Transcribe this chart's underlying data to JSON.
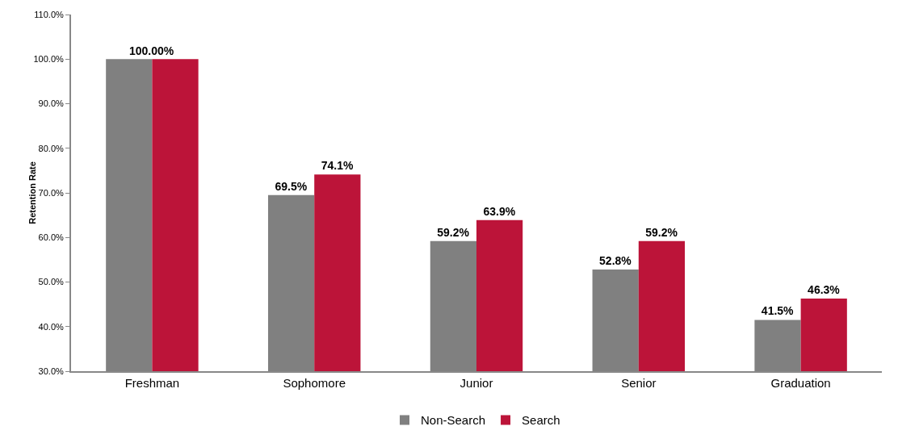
{
  "chart_data": {
    "type": "bar",
    "ylabel": "Retention Rate",
    "categories": [
      "Freshman",
      "Sophomore",
      "Junior",
      "Senior",
      "Graduation"
    ],
    "series": [
      {
        "name": "Non-Search",
        "color": "#808080",
        "values": [
          100,
          69.5,
          59.2,
          52.8,
          41.5
        ],
        "value_labels": [
          null,
          "69.5%",
          "59.2%",
          "52.8%",
          "41.5%"
        ]
      },
      {
        "name": "Search",
        "color": "#bc1439",
        "values": [
          100,
          74.1,
          63.9,
          59.2,
          46.3
        ],
        "value_labels": [
          null,
          "74.1%",
          "63.9%",
          "59.2%",
          "46.3%"
        ]
      }
    ],
    "annotations": [
      {
        "text": "100.00%",
        "x": "Freshman",
        "y": 100
      }
    ],
    "ylim": [
      30,
      110
    ],
    "yticks": [
      {
        "value": 30,
        "label": "30.0%"
      },
      {
        "value": 40,
        "label": "40.0%"
      },
      {
        "value": 50,
        "label": "50.0%"
      },
      {
        "value": 60,
        "label": "60.0%"
      },
      {
        "value": 70,
        "label": "70.0%"
      },
      {
        "value": 80,
        "label": "80.0%"
      },
      {
        "value": 90,
        "label": "90.0%"
      },
      {
        "value": 100,
        "label": "100.0%"
      },
      {
        "value": 110,
        "label": "110.0%"
      }
    ],
    "grid": false,
    "legend": "bottom"
  }
}
